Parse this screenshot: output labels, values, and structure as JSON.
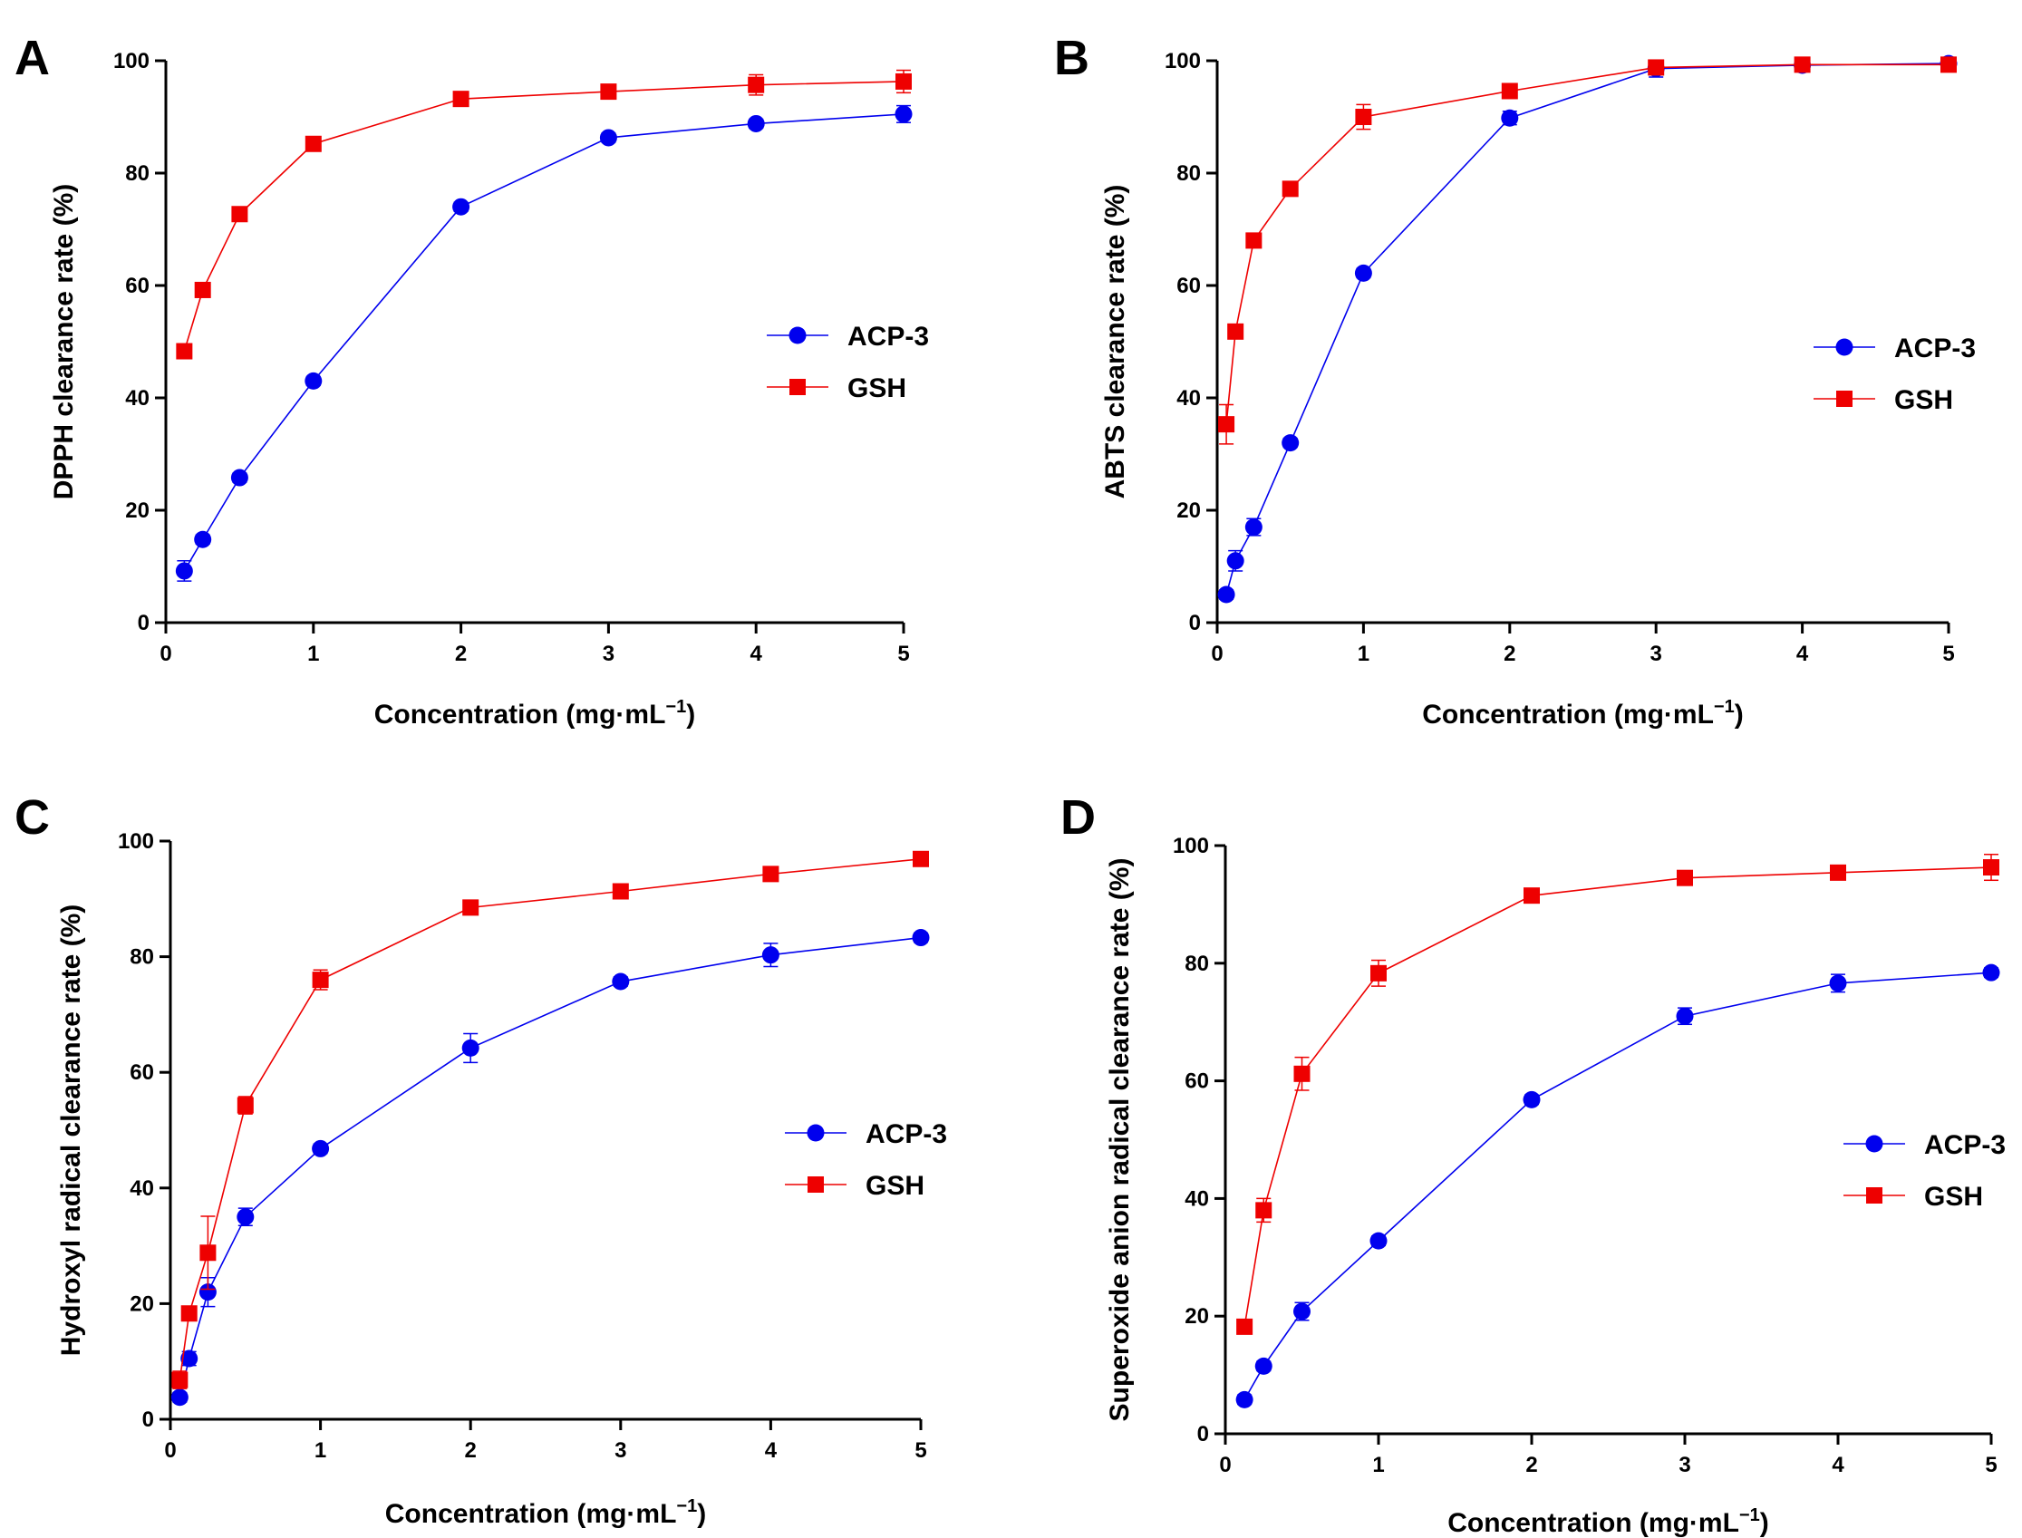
{
  "colors": {
    "acp": "#0000ee",
    "gsh": "#ee0000",
    "axis": "#000000"
  },
  "chart_data": [
    {
      "type": "line",
      "panel": "A",
      "xlabel": "Concentration (mg·mL",
      "xlabel_sup": "−1",
      "xlabel_close": ")",
      "ylabel": "DPPH clearance rate (%)",
      "xlim": [
        0,
        5
      ],
      "ylim": [
        0,
        100
      ],
      "xticks": [
        0,
        1,
        2,
        3,
        4,
        5
      ],
      "yticks": [
        0,
        20,
        40,
        60,
        80,
        100
      ],
      "legend_position": "center-right",
      "series": [
        {
          "name": "ACP-3",
          "marker": "circle",
          "x": [
            0.125,
            0.25,
            0.5,
            1,
            2,
            3,
            4,
            5
          ],
          "y": [
            9.2,
            14.8,
            25.8,
            43.0,
            74.0,
            86.3,
            88.8,
            90.5
          ],
          "err": [
            1.8,
            0.8,
            0.8,
            0.8,
            0.8,
            0.8,
            0.8,
            1.5
          ]
        },
        {
          "name": "GSH",
          "marker": "square",
          "x": [
            0.125,
            0.25,
            0.5,
            1,
            2,
            3,
            4,
            5
          ],
          "y": [
            48.3,
            59.2,
            72.7,
            85.2,
            93.2,
            94.5,
            95.7,
            96.3
          ],
          "err": [
            0.8,
            0.8,
            0.8,
            0.8,
            0.8,
            0.8,
            1.8,
            2.0
          ]
        }
      ]
    },
    {
      "type": "line",
      "panel": "B",
      "xlabel": "Concentration (mg·mL",
      "xlabel_sup": "−1",
      "xlabel_close": ")",
      "ylabel": "ABTS clearance rate (%)",
      "xlim": [
        0,
        5
      ],
      "ylim": [
        0,
        100
      ],
      "xticks": [
        0,
        1,
        2,
        3,
        4,
        5
      ],
      "yticks": [
        0,
        20,
        40,
        60,
        80,
        100
      ],
      "legend_position": "center-right",
      "series": [
        {
          "name": "ACP-3",
          "marker": "circle",
          "x": [
            0.0625,
            0.125,
            0.25,
            0.5,
            1,
            2,
            3,
            4,
            5
          ],
          "y": [
            5.0,
            11.0,
            17.0,
            32.0,
            62.2,
            89.8,
            98.6,
            99.2,
            99.5
          ],
          "err": [
            0.8,
            1.8,
            1.5,
            0.8,
            0.8,
            1.2,
            1.5,
            0.8,
            0.8
          ]
        },
        {
          "name": "GSH",
          "marker": "square",
          "x": [
            0.0625,
            0.125,
            0.25,
            0.5,
            1,
            2,
            3,
            4,
            5
          ],
          "y": [
            35.3,
            51.8,
            68.0,
            77.2,
            90.0,
            94.6,
            98.8,
            99.3,
            99.3
          ],
          "err": [
            3.5,
            0.8,
            1.0,
            0.8,
            2.2,
            0.8,
            0.8,
            0.8,
            0.8
          ]
        }
      ]
    },
    {
      "type": "line",
      "panel": "C",
      "xlabel": "Concentration (mg·mL",
      "xlabel_sup": "−1",
      "xlabel_close": ")",
      "ylabel": "Hydroxyl radical clearance rate (%)",
      "xlim": [
        0,
        5
      ],
      "ylim": [
        0,
        100
      ],
      "xticks": [
        0,
        1,
        2,
        3,
        4,
        5
      ],
      "yticks": [
        0,
        20,
        40,
        60,
        80,
        100
      ],
      "legend_position": "center-right",
      "series": [
        {
          "name": "ACP-3",
          "marker": "circle",
          "x": [
            0.0625,
            0.125,
            0.25,
            0.5,
            1,
            2,
            3,
            4,
            5
          ],
          "y": [
            3.8,
            10.5,
            22.0,
            35.0,
            46.8,
            64.2,
            75.7,
            80.3,
            83.3
          ],
          "err": [
            0.8,
            1.2,
            2.5,
            1.5,
            0.8,
            2.5,
            0.8,
            2.0,
            0.8
          ]
        },
        {
          "name": "GSH",
          "marker": "square",
          "x": [
            0.0625,
            0.125,
            0.25,
            0.5,
            1,
            2,
            3,
            4,
            5
          ],
          "y": [
            6.8,
            18.3,
            28.8,
            54.3,
            76.0,
            88.5,
            91.3,
            94.3,
            96.9
          ],
          "err": [
            1.5,
            1.0,
            6.3,
            1.5,
            1.7,
            0.8,
            0.8,
            0.8,
            0.8
          ]
        }
      ]
    },
    {
      "type": "line",
      "panel": "D",
      "xlabel": "Concentration (mg·mL",
      "xlabel_sup": "−1",
      "xlabel_close": ")",
      "ylabel": "Superoxide anion radical clearance rate (%)",
      "xlim": [
        0,
        5
      ],
      "ylim": [
        0,
        100
      ],
      "xticks": [
        0,
        1,
        2,
        3,
        4,
        5
      ],
      "yticks": [
        0,
        20,
        40,
        60,
        80,
        100
      ],
      "legend_position": "center-right",
      "series": [
        {
          "name": "ACP-3",
          "marker": "circle",
          "x": [
            0.125,
            0.25,
            0.5,
            1,
            2,
            3,
            4,
            5
          ],
          "y": [
            5.8,
            11.5,
            20.8,
            32.8,
            56.8,
            71.0,
            76.6,
            78.4
          ],
          "err": [
            0.8,
            0.8,
            1.5,
            0.8,
            0.8,
            1.4,
            1.5,
            0.8
          ]
        },
        {
          "name": "GSH",
          "marker": "square",
          "x": [
            0.125,
            0.25,
            0.5,
            1,
            2,
            3,
            4,
            5
          ],
          "y": [
            18.2,
            38.0,
            61.2,
            78.3,
            91.5,
            94.5,
            95.4,
            96.3
          ],
          "err": [
            0.8,
            2.0,
            2.8,
            2.2,
            0.8,
            0.8,
            0.8,
            2.2
          ]
        }
      ]
    }
  ]
}
